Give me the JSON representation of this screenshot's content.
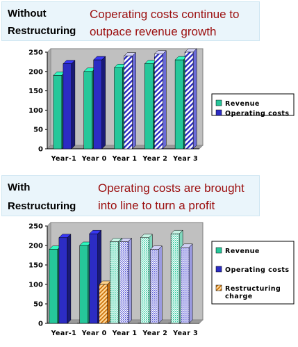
{
  "top": {
    "label_line1": "Without",
    "label_line2": "Restructuring",
    "headline_line1": "Coperating costs continue to",
    "headline_line2": "outpace revenue growth"
  },
  "bottom": {
    "label_line1": "With",
    "label_line2": "Restructuring",
    "headline_line1": "Operating costs are brought",
    "headline_line2": "into line to turn a profit"
  },
  "colors": {
    "revenue": "#26c79a",
    "operating_costs": "#2c2cc4",
    "restructuring": "#f0a030",
    "headline": "#9b0d0d",
    "banner_bg": "#eaf5fb"
  },
  "chart_data": [
    {
      "type": "bar",
      "categories": [
        "Year-1",
        "Year 0",
        "Year 1",
        "Year 2",
        "Year 3"
      ],
      "ylim": [
        0,
        250
      ],
      "yticks": [
        0,
        50,
        100,
        150,
        200,
        250
      ],
      "grid": false,
      "legend_position": "right",
      "series": [
        {
          "name": "Revenue",
          "values": [
            190,
            200,
            210,
            220,
            230
          ]
        },
        {
          "name": "Operating costs",
          "values": [
            220,
            230,
            240,
            245,
            250
          ]
        }
      ],
      "projected_from_index": 2
    },
    {
      "type": "bar",
      "categories": [
        "Year-1",
        "Year 0",
        "Year 1",
        "Year 2",
        "Year 3"
      ],
      "ylim": [
        0,
        250
      ],
      "yticks": [
        0,
        50,
        100,
        150,
        200,
        250
      ],
      "grid": false,
      "legend_position": "right",
      "series": [
        {
          "name": "Revenue",
          "values": [
            190,
            200,
            210,
            220,
            230
          ]
        },
        {
          "name": "Operating costs",
          "values": [
            220,
            230,
            210,
            190,
            195
          ]
        },
        {
          "name": "Restructuring charge",
          "values": [
            0,
            100,
            0,
            0,
            0
          ]
        }
      ],
      "projected_from_index": 2
    }
  ]
}
